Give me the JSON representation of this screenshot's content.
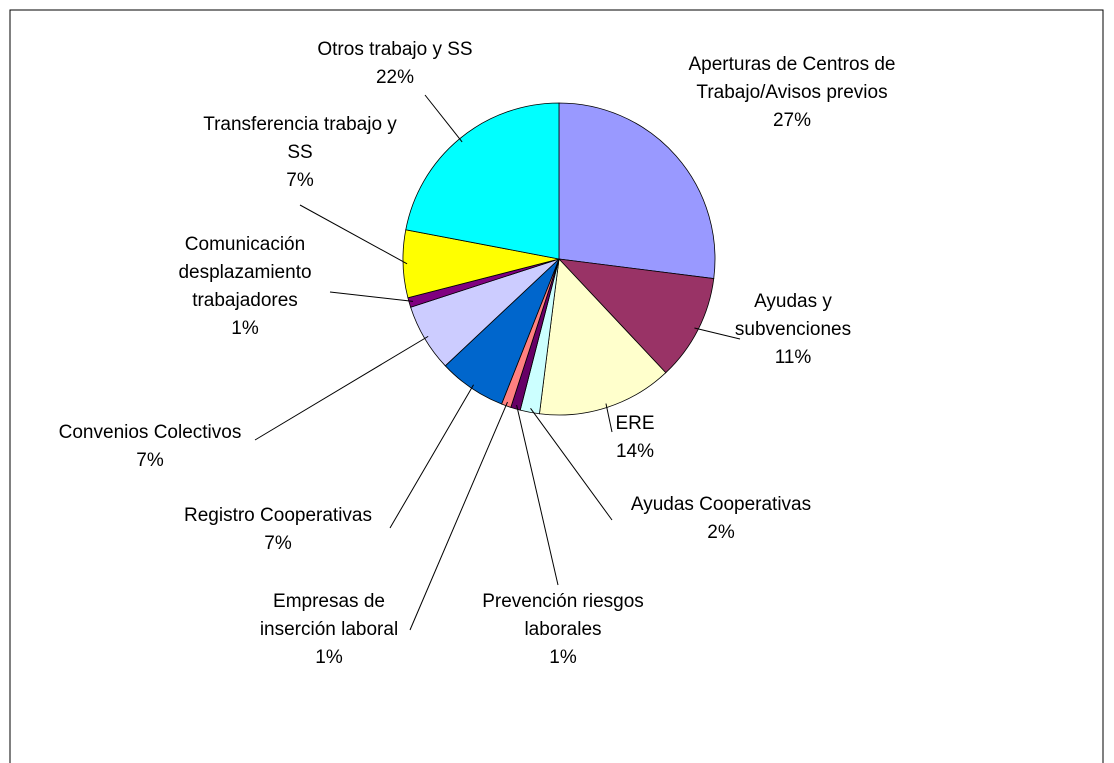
{
  "chart_data": {
    "type": "pie",
    "categories": [
      "Aperturas de Centros de Trabajo/Avisos previos",
      "Ayudas y subvenciones",
      "ERE",
      "Ayudas Cooperativas",
      "Prevención riesgos laborales",
      "Empresas de inserción laboral",
      "Registro Cooperativas",
      "Convenios Colectivos",
      "Comunicación desplazamiento trabajadores",
      "Transferencia trabajo y SS",
      "Otros trabajo y SS"
    ],
    "values": [
      27,
      11,
      14,
      2,
      1,
      1,
      7,
      7,
      1,
      7,
      22
    ],
    "value_labels": [
      "27%",
      "11%",
      "14%",
      "2%",
      "1%",
      "1%",
      "7%",
      "7%",
      "1%",
      "7%",
      "22%"
    ],
    "colors": [
      "#9999ff",
      "#993366",
      "#ffffcc",
      "#ccffff",
      "#660066",
      "#ff8080",
      "#0066cc",
      "#ccccff",
      "#800080",
      "#ffff00",
      "#00ffff"
    ]
  }
}
